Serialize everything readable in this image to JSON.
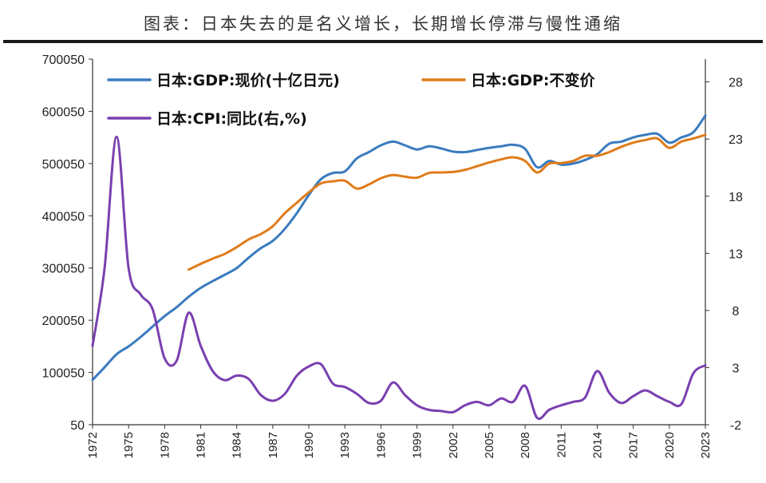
{
  "title": "图表：日本失去的是名义增长，长期增长停滞与慢性通缩",
  "chart_data": {
    "type": "line",
    "legend": {
      "items": [
        {
          "label": "日本:GDP:现价(十亿日元)",
          "color": "#3a7bbf"
        },
        {
          "label": "日本:GDP:不变价",
          "color": "#e07b1a"
        },
        {
          "label": "日本:CPI:同比(右,%)",
          "color": "#7a3fb0"
        }
      ],
      "placement": "top"
    },
    "y_left": {
      "ylim": [
        50,
        700050
      ],
      "ticks": [
        "50",
        "100050",
        "200050",
        "300050",
        "400050",
        "500050",
        "600050",
        "700050"
      ]
    },
    "y_right": {
      "ylim": [
        -2,
        30
      ],
      "ticks": [
        "-2",
        "3",
        "8",
        "13",
        "18",
        "23",
        "28"
      ]
    },
    "x_ticks": [
      "1972",
      "1975",
      "1978",
      "1981",
      "1984",
      "1987",
      "1990",
      "1993",
      "1996",
      "1999",
      "2002",
      "2005",
      "2008",
      "2011",
      "2014",
      "2017",
      "2020",
      "2023"
    ],
    "grid": false,
    "series": [
      {
        "name": "日本:GDP:现价(十亿日元)",
        "axis": "left",
        "color": "#3a7bbf",
        "x": [
          1972,
          1973,
          1974,
          1975,
          1976,
          1977,
          1978,
          1979,
          1980,
          1981,
          1982,
          1983,
          1984,
          1985,
          1986,
          1987,
          1988,
          1989,
          1990,
          1991,
          1992,
          1993,
          1994,
          1995,
          1996,
          1997,
          1998,
          1999,
          2000,
          2001,
          2002,
          2003,
          2004,
          2005,
          2006,
          2007,
          2008,
          2009,
          2010,
          2011,
          2012,
          2013,
          2014,
          2015,
          2016,
          2017,
          2018,
          2019,
          2020,
          2021,
          2022,
          2023
        ],
        "values": [
          86000,
          110000,
          135000,
          150000,
          168000,
          188000,
          208000,
          225000,
          245000,
          262000,
          275000,
          287000,
          300000,
          320000,
          338000,
          352000,
          375000,
          405000,
          440000,
          470000,
          482000,
          485000,
          510000,
          522000,
          535000,
          542000,
          535000,
          527000,
          533000,
          529000,
          523000,
          522000,
          526000,
          530000,
          533000,
          536000,
          528000,
          493000,
          505000,
          498000,
          500000,
          507000,
          518000,
          538000,
          542000,
          550000,
          555000,
          557000,
          540000,
          550000,
          560000,
          592000
        ]
      },
      {
        "name": "日本:GDP:不变价",
        "axis": "left",
        "color": "#e07b1a",
        "x": [
          1980,
          1981,
          1982,
          1983,
          1984,
          1985,
          1986,
          1987,
          1988,
          1989,
          1990,
          1991,
          1992,
          1993,
          1994,
          1995,
          1996,
          1997,
          1998,
          1999,
          2000,
          2001,
          2002,
          2003,
          2004,
          2005,
          2006,
          2007,
          2008,
          2009,
          2010,
          2011,
          2012,
          2013,
          2014,
          2015,
          2016,
          2017,
          2018,
          2019,
          2020,
          2021,
          2022,
          2023
        ],
        "values": [
          297000,
          308000,
          318000,
          327000,
          340000,
          355000,
          365000,
          380000,
          405000,
          425000,
          445000,
          462000,
          466000,
          467000,
          452000,
          460000,
          472000,
          478000,
          475000,
          473000,
          482000,
          483000,
          484000,
          488000,
          495000,
          502000,
          508000,
          512000,
          505000,
          483000,
          500000,
          501000,
          505000,
          515000,
          515000,
          522000,
          532000,
          540000,
          545000,
          548000,
          530000,
          542000,
          548000,
          555000
        ]
      },
      {
        "name": "日本:CPI:同比(右,%)",
        "axis": "right",
        "color": "#7a3fb0",
        "x": [
          1972,
          1973,
          1974,
          1975,
          1976,
          1977,
          1978,
          1979,
          1980,
          1981,
          1982,
          1983,
          1984,
          1985,
          1986,
          1987,
          1988,
          1989,
          1990,
          1991,
          1992,
          1993,
          1994,
          1995,
          1996,
          1997,
          1998,
          1999,
          2000,
          2001,
          2002,
          2003,
          2004,
          2005,
          2006,
          2007,
          2008,
          2009,
          2010,
          2011,
          2012,
          2013,
          2014,
          2015,
          2016,
          2017,
          2018,
          2019,
          2020,
          2021,
          2022,
          2023
        ],
        "values": [
          4.9,
          11.7,
          23.2,
          11.7,
          9.4,
          8.1,
          3.8,
          3.6,
          7.8,
          4.9,
          2.7,
          1.9,
          2.3,
          2.0,
          0.6,
          0.1,
          0.7,
          2.3,
          3.1,
          3.3,
          1.6,
          1.3,
          0.7,
          -0.1,
          0.1,
          1.7,
          0.6,
          -0.3,
          -0.7,
          -0.8,
          -0.9,
          -0.3,
          0.0,
          -0.3,
          0.3,
          0.0,
          1.4,
          -1.4,
          -0.7,
          -0.3,
          0.0,
          0.4,
          2.7,
          0.8,
          -0.1,
          0.5,
          1.0,
          0.5,
          0.0,
          -0.2,
          2.5,
          3.2
        ]
      }
    ]
  }
}
